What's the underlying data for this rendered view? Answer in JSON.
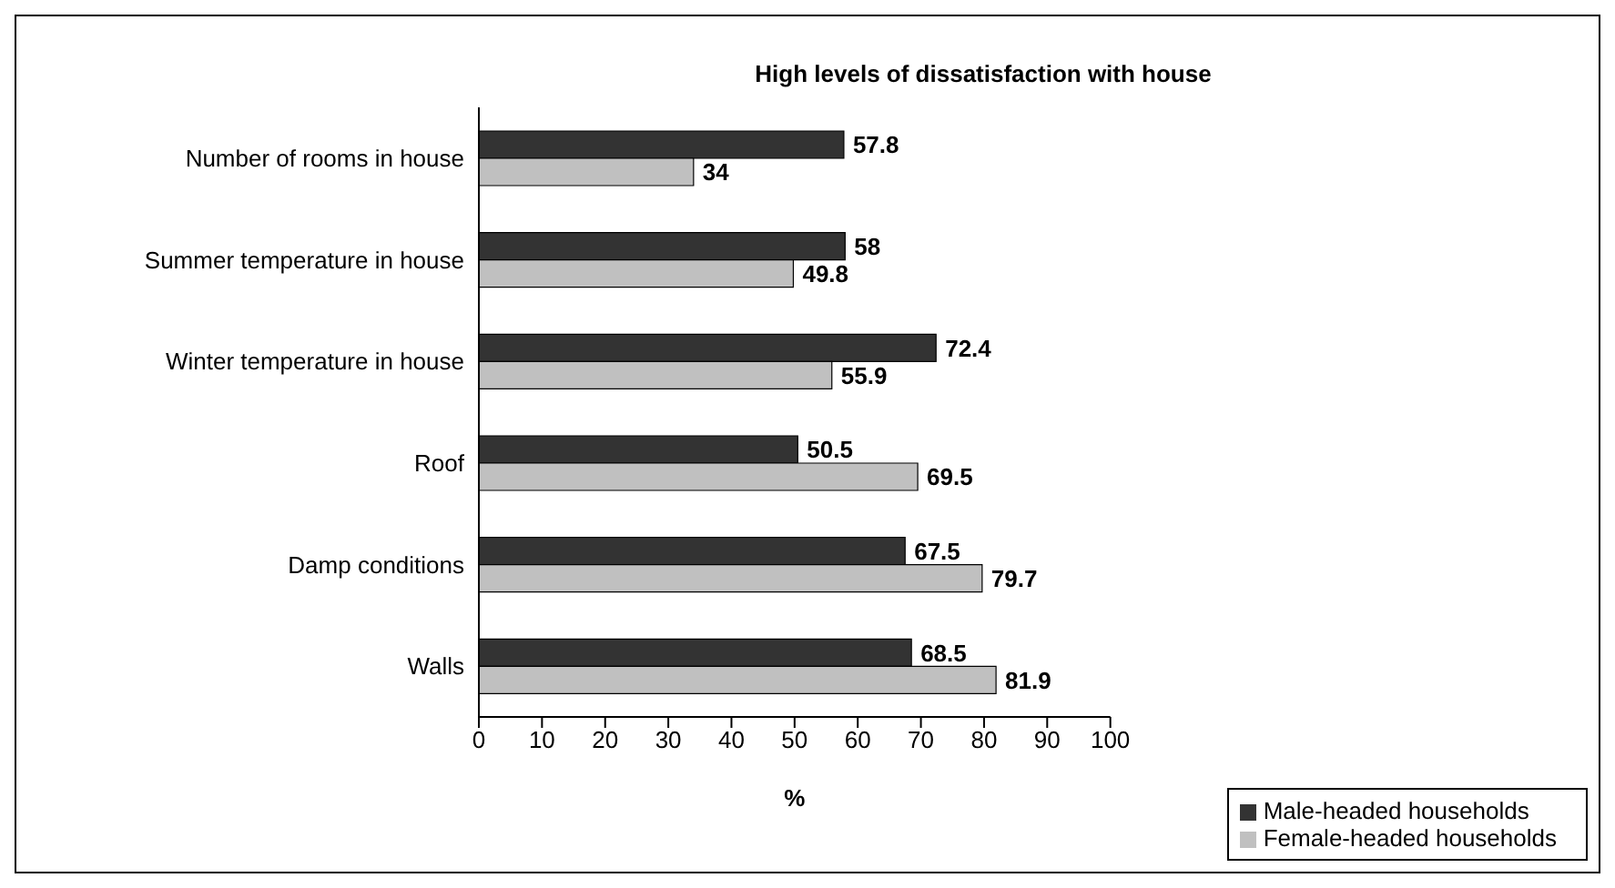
{
  "chart_data": {
    "type": "bar",
    "orientation": "horizontal",
    "title": "High levels of dissatisfaction with house",
    "xlabel": "%",
    "categories": [
      "Number of rooms in house",
      "Summer temperature in house",
      "Winter temperature in house",
      "Roof",
      "Damp conditions",
      "Walls"
    ],
    "series": [
      {
        "name": "Male-headed households",
        "color": "#333333",
        "values": [
          57.8,
          58,
          72.4,
          50.5,
          67.5,
          68.5
        ]
      },
      {
        "name": "Female-headed households",
        "color": "#c0c0c0",
        "values": [
          34,
          49.8,
          55.9,
          69.5,
          79.7,
          81.9
        ]
      }
    ],
    "xlim": [
      0,
      100
    ],
    "xticks": [
      0,
      10,
      20,
      30,
      40,
      50,
      60,
      70,
      80,
      90,
      100
    ],
    "grid": false,
    "legend": "bottom right",
    "data_labels": true
  }
}
